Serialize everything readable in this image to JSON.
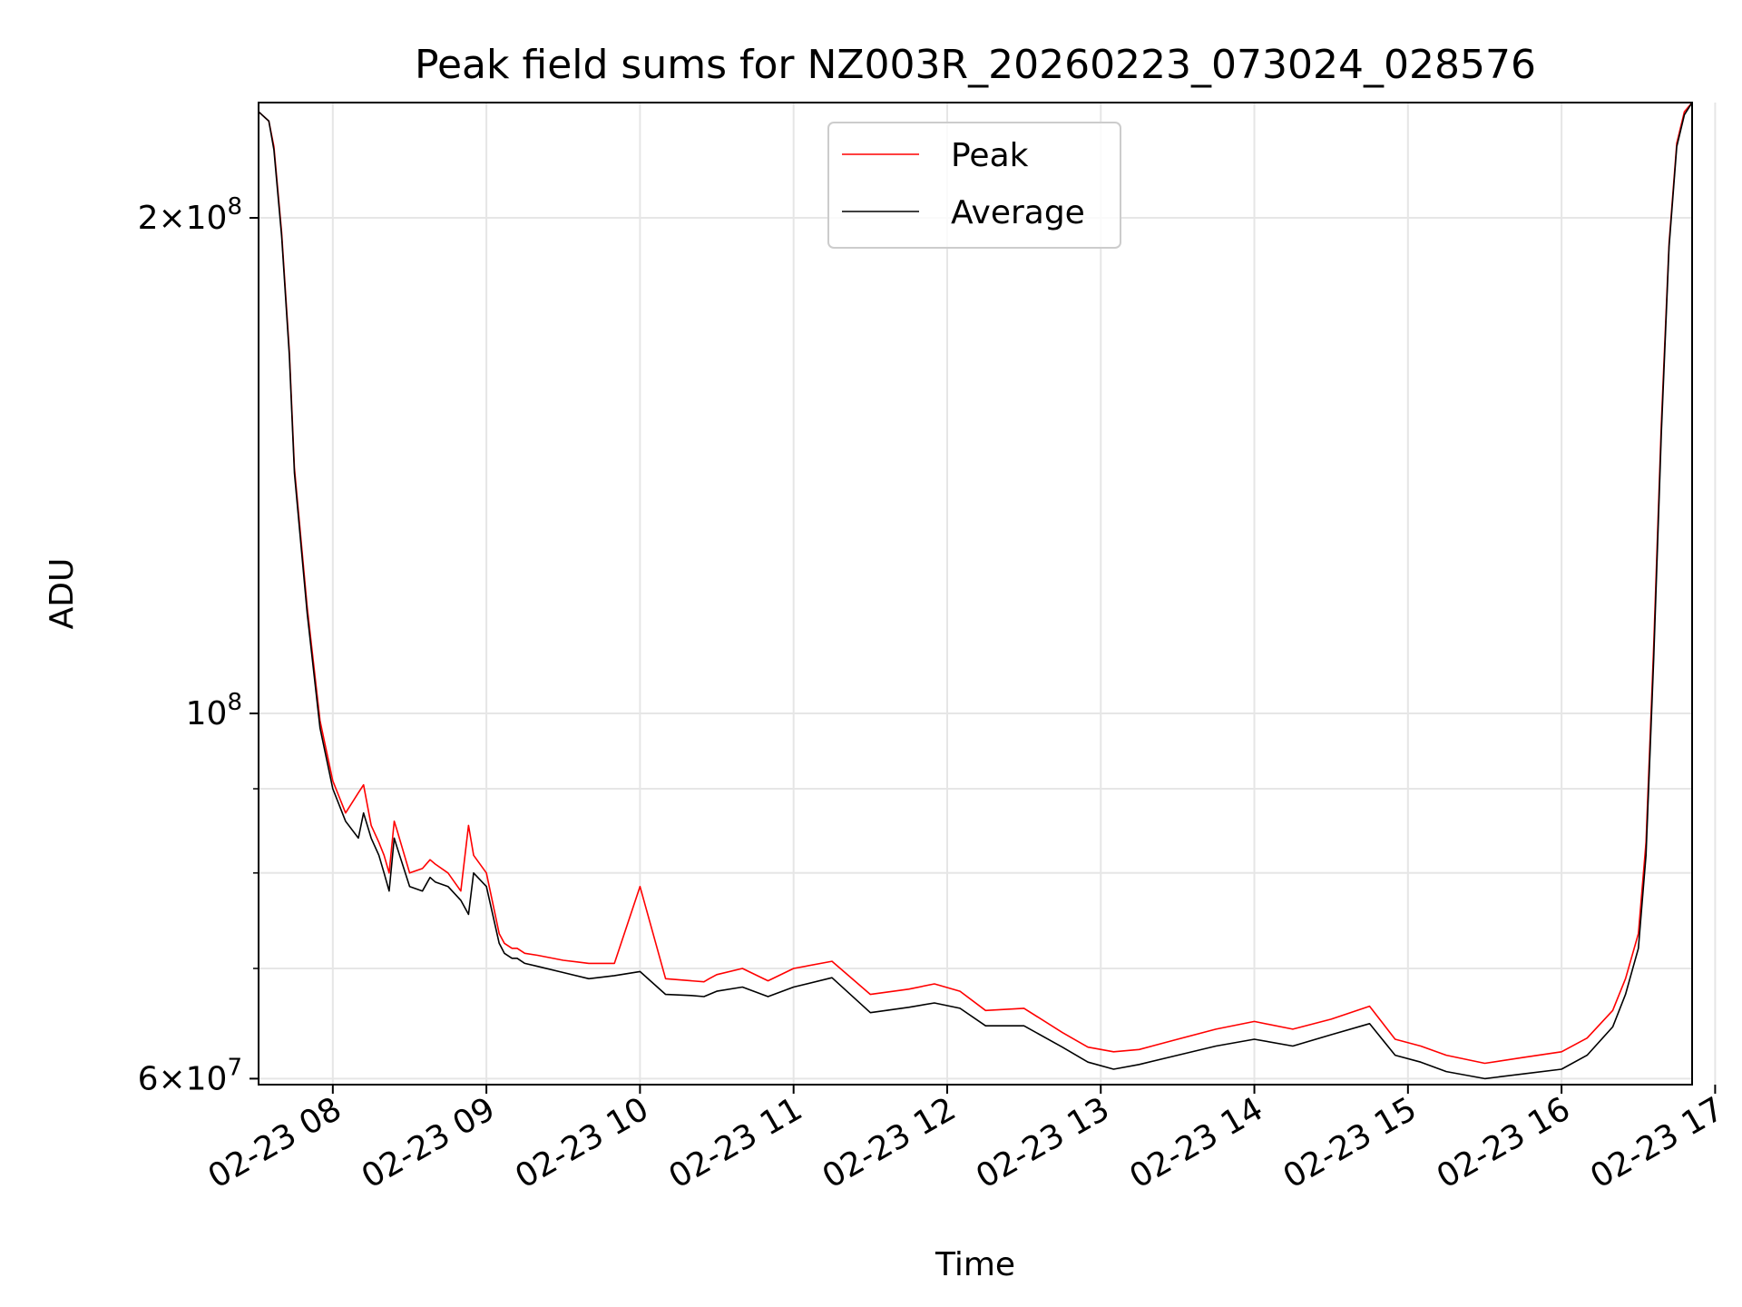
{
  "chart_data": {
    "type": "line",
    "title": "Peak field sums for NZ003R_20260223_073024_028576",
    "xlabel": "Time",
    "ylabel": "ADU",
    "x_axis": "time",
    "xlim": [
      "2026-02-23 07:31",
      "2026-02-23 16:51"
    ],
    "x_ticks": [
      "2026-02-23 08:00",
      "2026-02-23 09:00",
      "2026-02-23 10:00",
      "2026-02-23 11:00",
      "2026-02-23 12:00",
      "2026-02-23 13:00",
      "2026-02-23 14:00",
      "2026-02-23 15:00",
      "2026-02-23 16:00",
      "2026-02-23 17:00"
    ],
    "x_tick_labels": [
      "02-23 08",
      "02-23 09",
      "02-23 10",
      "02-23 11",
      "02-23 12",
      "02-23 13",
      "02-23 14",
      "02-23 15",
      "02-23 16",
      "02-23 17"
    ],
    "yscale": "log",
    "ylim": [
      59500000,
      235000000
    ],
    "y_ticks": [
      60000000,
      100000000,
      200000000
    ],
    "y_tick_labels": [
      {
        "base": "6",
        "exp": "7"
      },
      {
        "base": "10",
        "exp": "8"
      },
      {
        "base": "2",
        "exp": "8"
      }
    ],
    "y_minor_ticks": [
      70000000,
      80000000,
      90000000
    ],
    "grid": true,
    "legend_position": "upper-center",
    "series": [
      {
        "name": "Peak",
        "color": "#ff0000"
      },
      {
        "name": "Average",
        "color": "#000000"
      }
    ],
    "x": [
      "07:31",
      "07:35",
      "07:37",
      "07:40",
      "07:43",
      "07:45",
      "07:50",
      "07:55",
      "08:00",
      "08:05",
      "08:10",
      "08:12",
      "08:15",
      "08:18",
      "08:20",
      "08:22",
      "08:24",
      "08:25",
      "08:30",
      "08:35",
      "08:38",
      "08:40",
      "08:45",
      "08:50",
      "08:53",
      "08:55",
      "09:00",
      "09:05",
      "09:07",
      "09:10",
      "09:12",
      "09:15",
      "09:20",
      "09:30",
      "09:40",
      "09:50",
      "10:00",
      "10:10",
      "10:20",
      "10:25",
      "10:27",
      "10:30",
      "10:40",
      "10:50",
      "11:00",
      "11:15",
      "11:30",
      "11:45",
      "11:55",
      "12:05",
      "12:15",
      "12:30",
      "12:45",
      "12:55",
      "13:05",
      "13:15",
      "13:30",
      "13:45",
      "14:00",
      "14:15",
      "14:30",
      "14:45",
      "14:55",
      "15:05",
      "15:15",
      "15:30",
      "15:45",
      "16:00",
      "16:10",
      "16:20",
      "16:25",
      "16:30",
      "16:33",
      "16:36",
      "16:39",
      "16:42",
      "16:45",
      "16:48",
      "16:51"
    ],
    "average": [
      232000000,
      229000000,
      220000000,
      195000000,
      165000000,
      140000000,
      115000000,
      98000000,
      90000000,
      86000000,
      84000000,
      87000000,
      84000000,
      82000000,
      80000000,
      78000000,
      84000000,
      83000000,
      78500000,
      78000000,
      79500000,
      79000000,
      78500000,
      77000000,
      75500000,
      80000000,
      78500000,
      72500000,
      71500000,
      71000000,
      71000000,
      70500000,
      70200000,
      69600000,
      69000000,
      69300000,
      69700000,
      67500000,
      67400000,
      67300000,
      67500000,
      67800000,
      68200000,
      67300000,
      68200000,
      69100000,
      65800000,
      66300000,
      66700000,
      66200000,
      64600000,
      64600000,
      62700000,
      61400000,
      60800000,
      61200000,
      62000000,
      62800000,
      63400000,
      62800000,
      63800000,
      64800000,
      62000000,
      61400000,
      60600000,
      60000000,
      60400000,
      60800000,
      62000000,
      64500000,
      67500000,
      72000000,
      82000000,
      108000000,
      148000000,
      192000000,
      221000000,
      231000000,
      235000000
    ],
    "peak": [
      232000000,
      229000000,
      221000000,
      196000000,
      166000000,
      141000000,
      116000000,
      99000000,
      91000000,
      87000000,
      89500000,
      90500000,
      85500000,
      83500000,
      82000000,
      80000000,
      86000000,
      85000000,
      80000000,
      80500000,
      81500000,
      81000000,
      80000000,
      78000000,
      85500000,
      82000000,
      80000000,
      73500000,
      72500000,
      72000000,
      72000000,
      71500000,
      71300000,
      70800000,
      70500000,
      70500000,
      78500000,
      69000000,
      68800000,
      68700000,
      69000000,
      69400000,
      70000000,
      68800000,
      70000000,
      70700000,
      67500000,
      68000000,
      68500000,
      67800000,
      66000000,
      66200000,
      64000000,
      62700000,
      62300000,
      62500000,
      63400000,
      64300000,
      65000000,
      64300000,
      65200000,
      66400000,
      63400000,
      62800000,
      62000000,
      61300000,
      61800000,
      62300000,
      63500000,
      66000000,
      69000000,
      73500000,
      83500000,
      110000000,
      150000000,
      193000000,
      222000000,
      232000000,
      235000000
    ]
  }
}
